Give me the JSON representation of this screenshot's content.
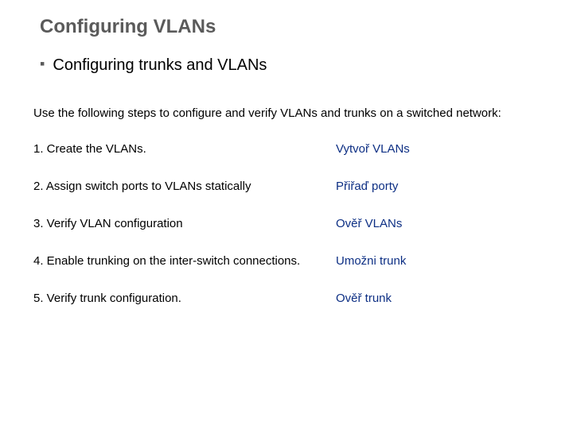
{
  "title": "Configuring VLANs",
  "subtitle": "Configuring trunks and VLANs",
  "intro": "Use the following steps to configure and verify VLANs and trunks on a switched network:",
  "steps": [
    {
      "left": "1. Create the VLANs.",
      "right": "Vytvoř VLANs"
    },
    {
      "left": "2. Assign switch ports to VLANs statically",
      "right": "Přiřaď porty"
    },
    {
      "left": "3. Verify VLAN configuration",
      "right": "Ověř VLANs"
    },
    {
      "left": "4. Enable trunking on the inter-switch connections.",
      "right": "Umožni trunk"
    },
    {
      "left": "5. Verify trunk configuration.",
      "right": "Ověř trunk"
    }
  ],
  "colors": {
    "title_color": "#5a5a5a",
    "subtitle_color": "#000000",
    "body_color": "#000000",
    "translation_color": "#0d2f84",
    "bullet_color": "#5a5a5a",
    "background": "#ffffff"
  },
  "typography": {
    "title_fontsize": 24,
    "subtitle_fontsize": 20,
    "body_fontsize": 15,
    "title_weight": "bold",
    "subtitle_weight": "normal"
  }
}
